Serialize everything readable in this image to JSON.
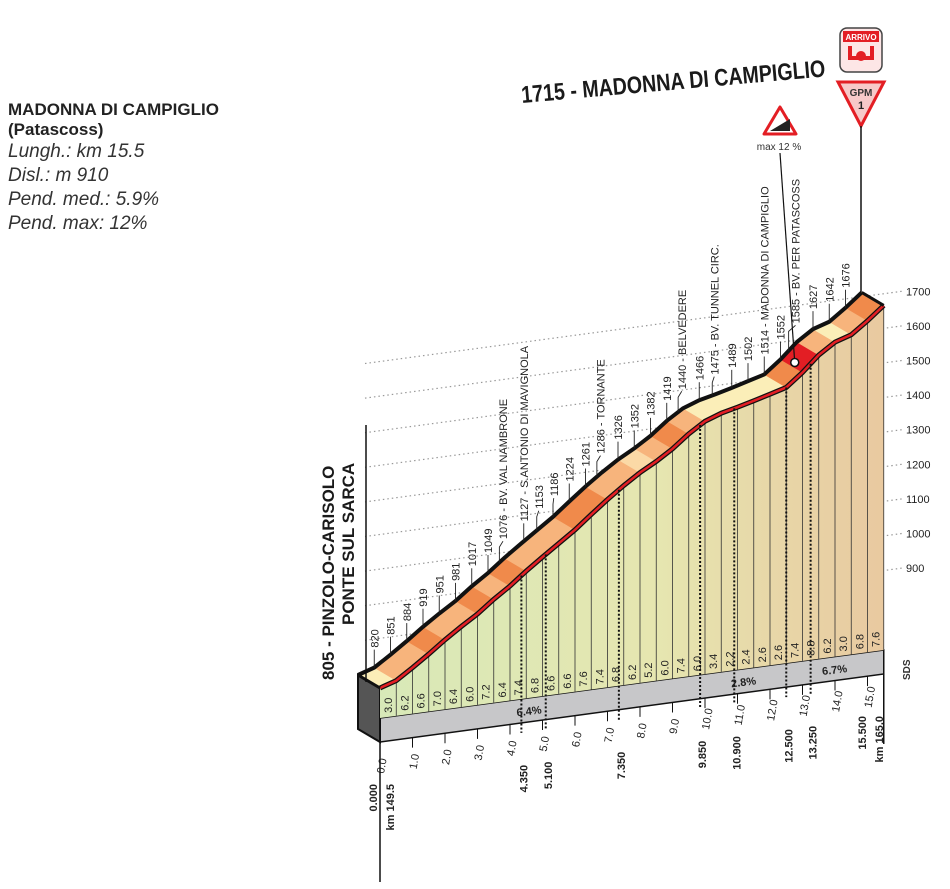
{
  "info": {
    "climb_name": "MADONNA DI CAMPIGLIO",
    "climb_sub": "(Patascoss)",
    "length": "Lungh.: km 15.5",
    "gain": "Disl.: m 910",
    "avg_grade": "Pend. med.: 5.9%",
    "max_grade": "Pend. max: 12%"
  },
  "title": "1715 - MADONNA DI CAMPIGLIO",
  "arrivo_label": "ARRIVO",
  "gpm": {
    "label": "GPM",
    "category": "1"
  },
  "max_sign": "max 12 %",
  "start_label": {
    "line1": "805 - PINZOLO-CARISOLO",
    "line2": "PONTE SUL SARCA"
  },
  "sds_label": "SDS",
  "colors": {
    "line": "#111111",
    "red": "#e31e24",
    "steep": "#f08a4b",
    "medium": "#f7b47c",
    "easy": "#fbd9a6",
    "flat": "#fbeeb8",
    "slab": "#c7c7c9",
    "green": "#d8e9b8",
    "tan": "#e9c9a0"
  },
  "chart_data": {
    "type": "area",
    "start_elevation": 805,
    "segment_km": 0.5,
    "gradients": [
      3.0,
      6.2,
      6.6,
      7.0,
      6.4,
      6.0,
      7.2,
      6.4,
      7.4,
      6.8,
      6.6,
      6.6,
      7.6,
      7.4,
      6.8,
      6.2,
      5.2,
      6.0,
      7.4,
      6.0,
      3.4,
      2.2,
      2.4,
      2.6,
      2.6,
      7.4,
      8.8,
      6.2,
      3.0,
      6.8,
      7.6
    ],
    "elevation_ticks": [
      900,
      1000,
      1100,
      1200,
      1300,
      1400,
      1500,
      1600,
      1700
    ],
    "km_ticks": [
      0,
      1,
      2,
      3,
      4,
      5,
      6,
      7,
      8,
      9,
      10,
      11,
      12,
      13,
      14,
      15
    ],
    "km_tick_labels": [
      "0.0",
      "1.0",
      "2.0",
      "3.0",
      "4.0",
      "5.0",
      "6.0",
      "7.0",
      "8.0",
      "9.0",
      "10.0",
      "11.0",
      "12.0",
      "13.0",
      "14.0",
      "15.0"
    ],
    "markers": [
      {
        "km": 0.5,
        "label": "820"
      },
      {
        "km": 1.0,
        "label": "851"
      },
      {
        "km": 1.5,
        "label": "884"
      },
      {
        "km": 2.0,
        "label": "919"
      },
      {
        "km": 2.5,
        "label": "951"
      },
      {
        "km": 3.0,
        "label": "981"
      },
      {
        "km": 3.5,
        "label": "1017"
      },
      {
        "km": 4.0,
        "label": "1049"
      },
      {
        "km": 4.35,
        "label": "1076 - BV. VAL NAMBRONE"
      },
      {
        "km": 5.1,
        "label": "1127 - S.ANTONIO DI MAVIGNOLA"
      },
      {
        "km": 5.5,
        "label": "1153"
      },
      {
        "km": 6.0,
        "label": "1186"
      },
      {
        "km": 6.5,
        "label": "1224"
      },
      {
        "km": 7.0,
        "label": "1261"
      },
      {
        "km": 7.35,
        "label": "1286 - TORNANTE"
      },
      {
        "km": 8.0,
        "label": "1326"
      },
      {
        "km": 8.5,
        "label": "1352"
      },
      {
        "km": 9.0,
        "label": "1382"
      },
      {
        "km": 9.5,
        "label": "1419"
      },
      {
        "km": 9.85,
        "label": "1440 - BELVEDERE"
      },
      {
        "km": 10.5,
        "label": "1466"
      },
      {
        "km": 10.9,
        "label": "1475 - BV. TUNNEL CIRC."
      },
      {
        "km": 11.5,
        "label": "1489"
      },
      {
        "km": 12.0,
        "label": "1502"
      },
      {
        "km": 12.5,
        "label": "1514 - MADONNA DI CAMPIGLIO"
      },
      {
        "km": 13.0,
        "label": "1552"
      },
      {
        "km": 13.25,
        "label": "1585 - BV. PER PATASCOSS"
      },
      {
        "km": 14.0,
        "label": "1627"
      },
      {
        "km": 14.5,
        "label": "1642"
      },
      {
        "km": 15.0,
        "label": "1676"
      }
    ],
    "key_points": [
      {
        "km": 0,
        "label": "0.000",
        "sub": "km 149.5"
      },
      {
        "km": 4.35,
        "label": "4.350"
      },
      {
        "km": 5.1,
        "label": "5.100"
      },
      {
        "km": 7.35,
        "label": "7.350"
      },
      {
        "km": 9.85,
        "label": "9.850"
      },
      {
        "km": 10.9,
        "label": "10.900"
      },
      {
        "km": 12.5,
        "label": "12.500"
      },
      {
        "km": 13.25,
        "label": "13.250"
      },
      {
        "km": 15.5,
        "label": "15.500",
        "sub": "km 165.0"
      }
    ],
    "averages": [
      {
        "km": 4.6,
        "label": "6.4%"
      },
      {
        "km": 11.2,
        "label": "2.8%"
      },
      {
        "km": 14.0,
        "label": "6.7%"
      }
    ],
    "max_grade_km": 13.1
  }
}
